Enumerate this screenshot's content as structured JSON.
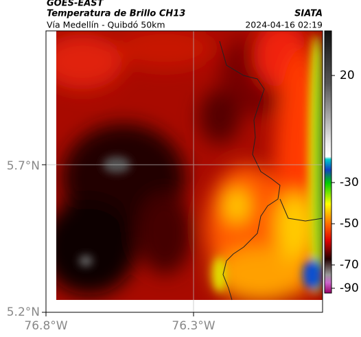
{
  "header": {
    "title": "GOES-EAST",
    "subtitle": "Temperatura de Brillo CH13",
    "location": "Vía Medellín - Quibdó 50km",
    "source": "SIATA",
    "timestamp": "2024-04-16 02:19"
  },
  "map": {
    "lat_labels": [
      "5.7°N",
      "5.2°N"
    ],
    "lon_labels": [
      "76.8°W",
      "76.3°W"
    ]
  },
  "colorbar": {
    "ticks": [
      "20",
      "-30",
      "-50",
      "-70",
      "-90"
    ]
  }
}
